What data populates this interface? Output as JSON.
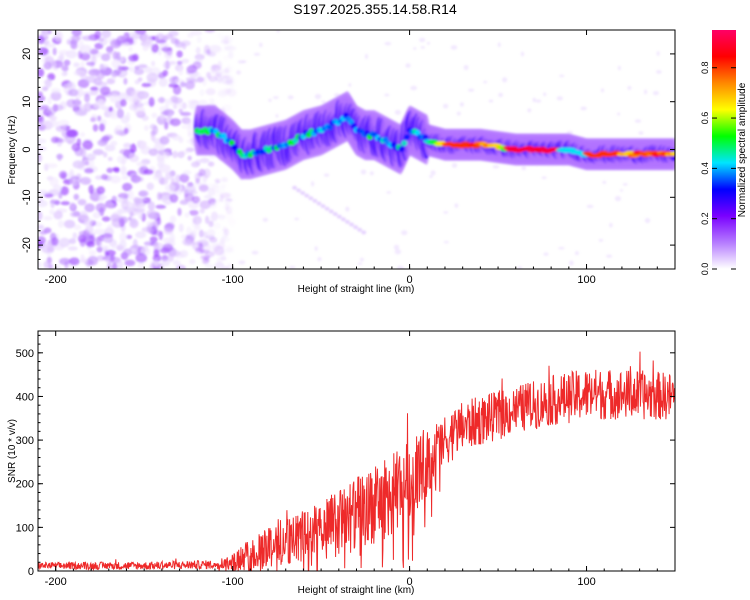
{
  "title": "S197.2025.355.14.58.R14",
  "colors": {
    "snr_line": "#ee2a2a",
    "colorbar_stops": [
      "#ffffff",
      "#b57bff",
      "#7a00ff",
      "#0000ff",
      "#00e5ff",
      "#00ff00",
      "#ffff00",
      "#ff8800",
      "#ff0000",
      "#ff0066"
    ]
  },
  "chart_data": [
    {
      "type": "heatmap",
      "name": "spectrogram",
      "xlabel": "Height of straight line (km)",
      "ylabel": "Frequency (Hz)",
      "xlim": [
        -210,
        150
      ],
      "ylim": [
        -25,
        25
      ],
      "xticks": [
        -200,
        -100,
        0,
        100
      ],
      "xtick_labels": [
        "-200",
        "-100",
        "0",
        "100"
      ],
      "yticks": [
        -20,
        -10,
        0,
        10,
        20
      ],
      "ytick_labels": [
        "-20",
        "-10",
        "0",
        "10",
        "20"
      ],
      "colorbar": {
        "label": "Normalized spectral amplitude",
        "range": [
          0,
          0.95
        ],
        "ticks": [
          0.0,
          0.2,
          0.4,
          0.6,
          0.8
        ],
        "tick_labels": [
          "0.0",
          "0.2",
          "0.4",
          "0.6",
          "0.8"
        ]
      },
      "ridge": {
        "x": [
          -120,
          -110,
          -100,
          -95,
          -90,
          -80,
          -70,
          -60,
          -50,
          -40,
          -35,
          -30,
          -25,
          -20,
          -15,
          -10,
          -5,
          0,
          5,
          10,
          20,
          40,
          60,
          80,
          90,
          100,
          120,
          150
        ],
        "frequency": [
          4,
          4,
          1,
          -1,
          -1,
          0,
          1,
          3,
          4,
          6,
          7,
          4,
          3,
          3,
          2,
          1,
          0,
          4,
          3,
          2,
          1,
          1,
          0,
          0,
          0,
          -1,
          -1,
          -1
        ]
      },
      "noise_region_x": [
        -210,
        -110
      ],
      "peak_region_x": [
        10,
        150
      ]
    },
    {
      "type": "line",
      "name": "snr",
      "xlabel": "Height of straight line (km)",
      "ylabel": "SNR (10 * v/v)",
      "xlim": [
        -210,
        150
      ],
      "ylim": [
        0,
        550
      ],
      "xticks": [
        -200,
        -100,
        0,
        100
      ],
      "xtick_labels": [
        "-200",
        "-100",
        "0",
        "100"
      ],
      "yticks": [
        0,
        100,
        200,
        300,
        400,
        500
      ],
      "ytick_labels": [
        "0",
        "100",
        "200",
        "300",
        "400",
        "500"
      ],
      "trend": {
        "x": [
          -210,
          -150,
          -110,
          -100,
          -90,
          -80,
          -70,
          -60,
          -50,
          -40,
          -30,
          -20,
          -10,
          -5,
          0,
          10,
          20,
          30,
          40,
          50,
          60,
          80,
          100,
          120,
          150
        ],
        "y": [
          12,
          12,
          15,
          22,
          35,
          60,
          70,
          80,
          95,
          110,
          130,
          150,
          175,
          190,
          215,
          250,
          300,
          330,
          345,
          355,
          370,
          390,
          405,
          405,
          400
        ]
      },
      "noise_amplitude": {
        "x": [
          -210,
          -110,
          -100,
          -80,
          -60,
          -40,
          -20,
          0,
          20,
          60,
          100,
          150
        ],
        "amp": [
          8,
          10,
          20,
          55,
          60,
          80,
          90,
          95,
          60,
          55,
          60,
          55
        ]
      }
    }
  ]
}
